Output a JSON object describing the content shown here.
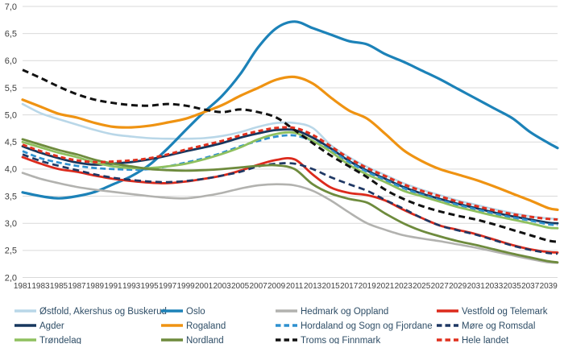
{
  "chart_data": {
    "type": "line",
    "title": "",
    "xlabel": "",
    "ylabel": "",
    "grid": "horizontal-only",
    "legend_position": "bottom",
    "ylim": [
      2.0,
      7.0
    ],
    "ytick_step": 0.5,
    "y_tick_labels": [
      "7,0",
      "6,5",
      "6,0",
      "5,5",
      "5,0",
      "4,5",
      "4,0",
      "3,5",
      "3,0",
      "2,5",
      "2,0"
    ],
    "x_tick_labels": [
      "1981",
      "1983",
      "1985",
      "1987",
      "1989",
      "1991",
      "1993",
      "1995",
      "1997",
      "1999",
      "2001",
      "2003",
      "2005",
      "2007",
      "2009",
      "2011",
      "2013",
      "2015",
      "2017",
      "2019",
      "2021",
      "2023",
      "2025",
      "2027",
      "2029",
      "2031",
      "2033",
      "2035",
      "2037",
      "2039"
    ],
    "x": [
      1981,
      1983,
      1985,
      1987,
      1989,
      1991,
      1993,
      1995,
      1997,
      1999,
      2001,
      2003,
      2005,
      2007,
      2009,
      2011,
      2013,
      2015,
      2017,
      2019,
      2021,
      2023,
      2025,
      2027,
      2029,
      2031,
      2033,
      2035,
      2037,
      2039,
      2040
    ],
    "xlim": [
      1981,
      2040
    ],
    "series": [
      {
        "name": "Østfold, Akershus og Buskerud",
        "color": "#b9d7e8",
        "dash": null,
        "width": 2.6,
        "values": [
          5.2,
          5.03,
          4.92,
          4.82,
          4.72,
          4.64,
          4.6,
          4.57,
          4.56,
          4.56,
          4.57,
          4.61,
          4.68,
          4.78,
          4.85,
          4.85,
          4.76,
          4.44,
          4.22,
          4.04,
          3.89,
          3.74,
          3.62,
          3.52,
          3.42,
          3.34,
          3.26,
          3.19,
          3.13,
          3.09,
          3.08
        ]
      },
      {
        "name": "Oslo",
        "color": "#1c82b8",
        "dash": null,
        "width": 3.2,
        "values": [
          3.57,
          3.5,
          3.46,
          3.5,
          3.58,
          3.72,
          3.87,
          4.08,
          4.38,
          4.72,
          5.05,
          5.35,
          5.75,
          6.25,
          6.6,
          6.72,
          6.6,
          6.48,
          6.36,
          6.3,
          6.12,
          5.98,
          5.82,
          5.66,
          5.48,
          5.3,
          5.12,
          4.94,
          4.68,
          4.48,
          4.39
        ]
      },
      {
        "name": "Hedmark og Oppland",
        "color": "#b2b2af",
        "dash": null,
        "width": 2.6,
        "values": [
          3.93,
          3.82,
          3.74,
          3.67,
          3.62,
          3.58,
          3.54,
          3.5,
          3.47,
          3.46,
          3.5,
          3.56,
          3.64,
          3.7,
          3.72,
          3.7,
          3.6,
          3.42,
          3.2,
          3.0,
          2.88,
          2.78,
          2.72,
          2.67,
          2.61,
          2.55,
          2.48,
          2.41,
          2.34,
          2.28,
          2.27
        ]
      },
      {
        "name": "Vestfold og Telemark",
        "color": "#dc2a1c",
        "dash": null,
        "width": 2.8,
        "values": [
          4.22,
          4.1,
          4.0,
          3.95,
          3.88,
          3.82,
          3.78,
          3.75,
          3.74,
          3.77,
          3.82,
          3.88,
          3.97,
          4.08,
          4.17,
          4.18,
          3.9,
          3.66,
          3.56,
          3.52,
          3.42,
          3.25,
          3.1,
          2.96,
          2.88,
          2.8,
          2.7,
          2.6,
          2.52,
          2.47,
          2.46
        ]
      },
      {
        "name": "Agder",
        "color": "#17375e",
        "dash": null,
        "width": 2.8,
        "values": [
          4.42,
          4.3,
          4.2,
          4.12,
          4.08,
          4.1,
          4.13,
          4.18,
          4.25,
          4.33,
          4.4,
          4.48,
          4.58,
          4.66,
          4.72,
          4.72,
          4.58,
          4.38,
          4.15,
          3.97,
          3.82,
          3.67,
          3.55,
          3.45,
          3.36,
          3.28,
          3.2,
          3.13,
          3.07,
          3.01,
          3.0
        ]
      },
      {
        "name": "Rogaland",
        "color": "#ef9312",
        "dash": null,
        "width": 3.2,
        "values": [
          5.28,
          5.15,
          5.02,
          4.95,
          4.85,
          4.78,
          4.77,
          4.8,
          4.86,
          4.93,
          5.05,
          5.18,
          5.35,
          5.5,
          5.65,
          5.7,
          5.58,
          5.32,
          5.08,
          4.93,
          4.65,
          4.35,
          4.15,
          4.0,
          3.9,
          3.8,
          3.68,
          3.55,
          3.42,
          3.28,
          3.25
        ]
      },
      {
        "name": "Hordaland og Sogn og Fjordane",
        "color": "#2e90cf",
        "dash": "7 4",
        "width": 2.7,
        "values": [
          4.33,
          4.2,
          4.12,
          4.06,
          4.02,
          4.0,
          3.99,
          4.0,
          4.05,
          4.12,
          4.2,
          4.3,
          4.42,
          4.52,
          4.6,
          4.62,
          4.52,
          4.35,
          4.13,
          3.95,
          3.8,
          3.65,
          3.53,
          3.43,
          3.34,
          3.26,
          3.18,
          3.11,
          3.05,
          2.98,
          2.97
        ]
      },
      {
        "name": "Møre og Romsdal",
        "color": "#1f3864",
        "dash": "8 5",
        "width": 2.7,
        "values": [
          4.27,
          4.15,
          4.06,
          3.98,
          3.9,
          3.84,
          3.8,
          3.77,
          3.76,
          3.78,
          3.82,
          3.88,
          3.95,
          4.05,
          4.1,
          4.1,
          4.0,
          3.85,
          3.72,
          3.6,
          3.43,
          3.27,
          3.1,
          2.96,
          2.87,
          2.79,
          2.69,
          2.59,
          2.51,
          2.45,
          2.44
        ]
      },
      {
        "name": "Trøndelag",
        "color": "#8fc05f",
        "dash": null,
        "width": 2.8,
        "values": [
          4.5,
          4.4,
          4.3,
          4.22,
          4.12,
          4.05,
          4.02,
          4.02,
          4.05,
          4.1,
          4.18,
          4.28,
          4.4,
          4.55,
          4.65,
          4.67,
          4.52,
          4.32,
          4.08,
          3.9,
          3.76,
          3.6,
          3.5,
          3.4,
          3.3,
          3.22,
          3.14,
          3.07,
          3.0,
          2.92,
          2.91
        ]
      },
      {
        "name": "Nordland",
        "color": "#6e8b3d",
        "dash": null,
        "width": 2.8,
        "values": [
          4.55,
          4.45,
          4.35,
          4.27,
          4.17,
          4.1,
          4.05,
          4.0,
          3.98,
          3.97,
          3.98,
          4.0,
          4.03,
          4.06,
          4.07,
          4.0,
          3.72,
          3.55,
          3.45,
          3.38,
          3.18,
          3.0,
          2.86,
          2.76,
          2.67,
          2.6,
          2.52,
          2.44,
          2.37,
          2.3,
          2.28
        ]
      },
      {
        "name": "Troms og Finnmark",
        "color": "#111111",
        "dash": "8 5",
        "width": 3.0,
        "values": [
          5.83,
          5.68,
          5.52,
          5.38,
          5.28,
          5.22,
          5.18,
          5.17,
          5.2,
          5.17,
          5.1,
          5.05,
          5.1,
          5.05,
          4.95,
          4.72,
          4.48,
          4.25,
          4.05,
          3.85,
          3.62,
          3.45,
          3.32,
          3.22,
          3.14,
          3.07,
          2.98,
          2.88,
          2.78,
          2.68,
          2.66
        ]
      },
      {
        "name": "Hele landet",
        "color": "#e0301e",
        "dash": "6 4",
        "width": 3.0,
        "values": [
          4.45,
          4.33,
          4.23,
          4.16,
          4.13,
          4.14,
          4.16,
          4.2,
          4.27,
          4.36,
          4.44,
          4.52,
          4.62,
          4.7,
          4.76,
          4.76,
          4.63,
          4.42,
          4.2,
          4.02,
          3.87,
          3.72,
          3.6,
          3.5,
          3.4,
          3.32,
          3.24,
          3.17,
          3.12,
          3.08,
          3.07
        ]
      }
    ],
    "legend_columns": [
      [
        0,
        4,
        8
      ],
      [
        1,
        5,
        9
      ],
      [
        2,
        6,
        10
      ],
      [
        3,
        7,
        11
      ]
    ]
  }
}
